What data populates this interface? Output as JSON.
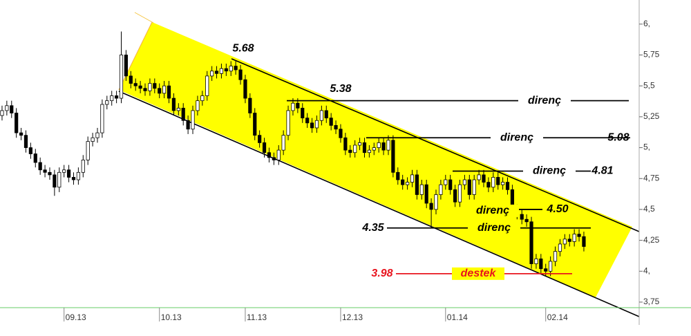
{
  "chart_data": {
    "type": "candlestick",
    "xlim": [
      -0.43,
      133.6
    ],
    "xticks": [
      {
        "value": 13,
        "label": "09.13"
      },
      {
        "value": 33,
        "label": "10.13"
      },
      {
        "value": 51,
        "label": "11.13"
      },
      {
        "value": 71,
        "label": "12.13"
      },
      {
        "value": 93,
        "label": "01.14"
      },
      {
        "value": 114,
        "label": "02.14"
      }
    ],
    "ylim": [
      3.705,
      6.195
    ],
    "yticks": [
      {
        "value": 6,
        "label": "6,"
      },
      {
        "value": 5.75,
        "label": "5,75"
      },
      {
        "value": 5.5,
        "label": "5,5"
      },
      {
        "value": 5.25,
        "label": "5,25"
      },
      {
        "value": 5,
        "label": "5,"
      },
      {
        "value": 4.75,
        "label": "4,75"
      },
      {
        "value": 4.5,
        "label": "4,5"
      },
      {
        "value": 4.25,
        "label": "4,25"
      },
      {
        "value": 4,
        "label": "4,"
      },
      {
        "value": 3.75,
        "label": "3,75"
      }
    ],
    "up_color": "#ffffff",
    "down_color": "#000000",
    "channel_color": "#ffff00",
    "candles": {
      "open": [
        5.26,
        5.3,
        5.34,
        5.28,
        5.12,
        5.1,
        5.0,
        4.95,
        4.88,
        4.82,
        4.8,
        4.78,
        4.68,
        4.8,
        4.82,
        4.76,
        4.74,
        4.8,
        4.9,
        5.05,
        5.08,
        5.12,
        5.35,
        5.38,
        5.42,
        5.4,
        5.75,
        5.58,
        5.52,
        5.5,
        5.48,
        5.46,
        5.52,
        5.48,
        5.44,
        5.5,
        5.4,
        5.3,
        5.32,
        5.22,
        5.15,
        5.3,
        5.38,
        5.42,
        5.58,
        5.62,
        5.6,
        5.64,
        5.62,
        5.66,
        5.63,
        5.55,
        5.4,
        5.28,
        5.1,
        5.04,
        4.96,
        4.92,
        4.9,
        4.98,
        5.1,
        5.3,
        5.36,
        5.32,
        5.24,
        5.2,
        5.16,
        5.22,
        5.3,
        5.24,
        5.18,
        5.15,
        5.08,
        4.98,
        4.96,
        5.02,
        5.04,
        4.96,
        4.98,
        5.0,
        5.04,
        4.98,
        5.06,
        4.8,
        4.74,
        4.7,
        4.72,
        4.78,
        4.62,
        4.7,
        4.55,
        4.5,
        4.62,
        4.7,
        4.74,
        4.66,
        4.56,
        4.7,
        4.74,
        4.62,
        4.74,
        4.78,
        4.72,
        4.68,
        4.76,
        4.7,
        4.72,
        4.66,
        4.5,
        4.46,
        4.42,
        4.4,
        4.06,
        4.1,
        4.02,
        4.0,
        4.08,
        4.16,
        4.22,
        4.26,
        4.24,
        4.3,
        4.28
      ],
      "high": [
        5.34,
        5.38,
        5.38,
        5.32,
        5.16,
        5.14,
        5.04,
        4.99,
        4.92,
        4.86,
        4.84,
        4.82,
        4.84,
        4.86,
        4.86,
        4.8,
        4.84,
        4.94,
        5.09,
        5.12,
        5.16,
        5.39,
        5.42,
        5.46,
        5.46,
        5.94,
        5.79,
        5.62,
        5.56,
        5.54,
        5.52,
        5.56,
        5.56,
        5.52,
        5.54,
        5.54,
        5.44,
        5.36,
        5.36,
        5.26,
        5.34,
        5.42,
        5.46,
        5.62,
        5.66,
        5.66,
        5.68,
        5.68,
        5.7,
        5.7,
        5.67,
        5.59,
        5.44,
        5.32,
        5.14,
        5.08,
        5.0,
        4.96,
        5.02,
        5.14,
        5.34,
        5.4,
        5.4,
        5.36,
        5.28,
        5.24,
        5.26,
        5.34,
        5.34,
        5.28,
        5.22,
        5.19,
        5.12,
        5.02,
        5.06,
        5.08,
        5.08,
        5.02,
        5.04,
        5.08,
        5.08,
        5.1,
        5.1,
        4.84,
        4.78,
        4.76,
        4.82,
        4.82,
        4.74,
        4.74,
        4.59,
        4.66,
        4.74,
        4.78,
        4.78,
        4.7,
        4.74,
        4.78,
        4.78,
        4.78,
        4.82,
        4.82,
        4.76,
        4.8,
        4.8,
        4.76,
        4.76,
        4.7,
        4.54,
        4.5,
        4.46,
        4.44,
        4.14,
        4.14,
        4.06,
        4.12,
        4.2,
        4.26,
        4.3,
        4.3,
        4.34,
        4.34,
        4.32
      ],
      "low": [
        5.22,
        5.26,
        5.24,
        5.08,
        5.06,
        4.96,
        4.91,
        4.84,
        4.78,
        4.76,
        4.74,
        4.61,
        4.64,
        4.76,
        4.72,
        4.7,
        4.7,
        4.76,
        4.86,
        5.01,
        5.04,
        5.08,
        5.31,
        5.34,
        5.36,
        5.36,
        5.54,
        5.48,
        5.46,
        5.44,
        5.42,
        5.42,
        5.44,
        5.4,
        5.4,
        5.36,
        5.26,
        5.26,
        5.18,
        5.11,
        5.11,
        5.26,
        5.34,
        5.38,
        5.54,
        5.56,
        5.56,
        5.58,
        5.58,
        5.59,
        5.51,
        5.36,
        5.24,
        5.06,
        5.0,
        4.92,
        4.88,
        4.86,
        4.86,
        4.94,
        5.06,
        5.26,
        5.28,
        5.2,
        5.16,
        5.12,
        5.12,
        5.18,
        5.2,
        5.14,
        5.11,
        5.04,
        4.94,
        4.92,
        4.92,
        4.98,
        4.92,
        4.92,
        4.94,
        4.96,
        4.94,
        4.94,
        4.76,
        4.7,
        4.66,
        4.66,
        4.68,
        4.58,
        4.58,
        4.51,
        4.35,
        4.46,
        4.58,
        4.66,
        4.62,
        4.52,
        4.52,
        4.66,
        4.58,
        4.58,
        4.7,
        4.68,
        4.64,
        4.64,
        4.66,
        4.66,
        4.62,
        4.46,
        4.42,
        4.38,
        4.36,
        4.02,
        4.02,
        3.98,
        3.96,
        3.96,
        4.04,
        4.12,
        4.18,
        4.2,
        4.2,
        4.24,
        4.16
      ],
      "close": [
        5.3,
        5.34,
        5.28,
        5.12,
        5.1,
        5.0,
        4.95,
        4.88,
        4.82,
        4.8,
        4.78,
        4.68,
        4.8,
        4.82,
        4.76,
        4.74,
        4.8,
        4.9,
        5.05,
        5.08,
        5.12,
        5.35,
        5.38,
        5.42,
        5.4,
        5.75,
        5.58,
        5.52,
        5.5,
        5.48,
        5.46,
        5.52,
        5.48,
        5.44,
        5.5,
        5.4,
        5.3,
        5.32,
        5.22,
        5.15,
        5.3,
        5.38,
        5.42,
        5.58,
        5.62,
        5.6,
        5.64,
        5.62,
        5.66,
        5.63,
        5.55,
        5.4,
        5.28,
        5.1,
        5.04,
        4.96,
        4.92,
        4.9,
        4.98,
        5.1,
        5.3,
        5.36,
        5.32,
        5.24,
        5.2,
        5.16,
        5.22,
        5.3,
        5.24,
        5.18,
        5.15,
        5.08,
        4.98,
        4.96,
        5.02,
        5.04,
        4.96,
        4.98,
        5.0,
        5.04,
        4.98,
        5.06,
        4.8,
        4.74,
        4.7,
        4.72,
        4.78,
        4.62,
        4.7,
        4.55,
        4.5,
        4.62,
        4.7,
        4.74,
        4.66,
        4.56,
        4.7,
        4.74,
        4.62,
        4.74,
        4.78,
        4.72,
        4.68,
        4.76,
        4.7,
        4.72,
        4.66,
        4.5,
        4.46,
        4.42,
        4.4,
        4.06,
        4.1,
        4.02,
        4.0,
        4.08,
        4.16,
        4.22,
        4.26,
        4.24,
        4.3,
        4.28,
        4.2
      ]
    },
    "annotations": [
      {
        "value": 5.68,
        "label": "5.68"
      },
      {
        "value": 5.38,
        "label": "5.38",
        "text": "direnç"
      },
      {
        "value": 5.08,
        "label": "5.08",
        "text": "direnç"
      },
      {
        "value": 4.81,
        "label": "4.81",
        "text": "direnç"
      },
      {
        "value": 4.5,
        "label": "4.50",
        "text": "direnç"
      },
      {
        "value": 4.35,
        "label": "4.35",
        "text": "direnç"
      },
      {
        "value": 3.98,
        "label": "3.98",
        "text": "destek",
        "color": "#e8141e"
      }
    ]
  }
}
